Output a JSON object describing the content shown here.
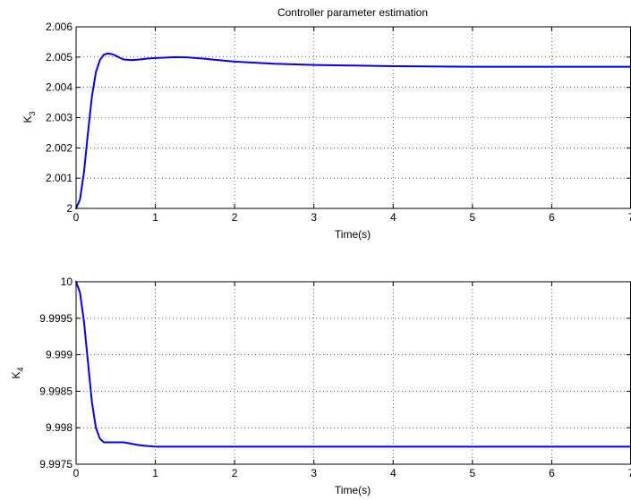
{
  "chart_data": [
    {
      "type": "line",
      "title": "Controller parameter estimation",
      "xlabel": "Time(s)",
      "ylabel": "K",
      "ylabel_sub": "3",
      "xlim": [
        0,
        7
      ],
      "ylim": [
        2,
        2.006
      ],
      "xticks": [
        "0",
        "1",
        "2",
        "3",
        "4",
        "5",
        "6",
        "7"
      ],
      "yticks": [
        "2",
        "2.001",
        "2.002",
        "2.003",
        "2.004",
        "2.005",
        "2.006"
      ],
      "grid": true,
      "line_color": "#0000ff",
      "series": [
        {
          "x": [
            0,
            0.05,
            0.1,
            0.15,
            0.2,
            0.25,
            0.3,
            0.35,
            0.4,
            0.45,
            0.5,
            0.55,
            0.6,
            0.7,
            0.8,
            0.9,
            1.0,
            1.1,
            1.25,
            1.4,
            1.6,
            1.8,
            2.0,
            2.5,
            3.0,
            3.5,
            4.0,
            5.0,
            6.0,
            7.0
          ],
          "y": [
            2.0,
            2.0003,
            2.0012,
            2.0025,
            2.0037,
            2.0045,
            2.0049,
            2.00508,
            2.00512,
            2.0051,
            2.00505,
            2.00498,
            2.00492,
            2.0049,
            2.00492,
            2.00495,
            2.00497,
            2.00498,
            2.005,
            2.00499,
            2.00495,
            2.0049,
            2.00485,
            2.00478,
            2.00474,
            2.00472,
            2.0047,
            2.00468,
            2.00468,
            2.00468
          ]
        }
      ]
    },
    {
      "type": "line",
      "title": "",
      "xlabel": "Time(s)",
      "ylabel": "K",
      "ylabel_sub": "4",
      "xlim": [
        0,
        7
      ],
      "ylim": [
        9.9975,
        10
      ],
      "xticks": [
        "0",
        "1",
        "2",
        "3",
        "4",
        "5",
        "6",
        "7"
      ],
      "yticks": [
        "9.9975",
        "9.998",
        "9.9985",
        "9.999",
        "9.9995",
        "10"
      ],
      "grid": true,
      "line_color": "#0000ff",
      "series": [
        {
          "x": [
            0,
            0.05,
            0.1,
            0.15,
            0.2,
            0.25,
            0.3,
            0.35,
            0.4,
            0.45,
            0.5,
            0.6,
            0.7,
            0.8,
            0.9,
            1.0,
            1.2,
            1.5,
            2.0,
            3.0,
            4.0,
            5.0,
            6.0,
            7.0
          ],
          "y": [
            10.0,
            9.99985,
            9.99945,
            9.9989,
            9.99835,
            9.998,
            9.99785,
            9.9978,
            9.9978,
            9.9978,
            9.9978,
            9.9978,
            9.99778,
            9.99776,
            9.99775,
            9.99774,
            9.99774,
            9.99774,
            9.99774,
            9.99774,
            9.99774,
            9.99774,
            9.99774,
            9.99774
          ]
        }
      ]
    }
  ]
}
